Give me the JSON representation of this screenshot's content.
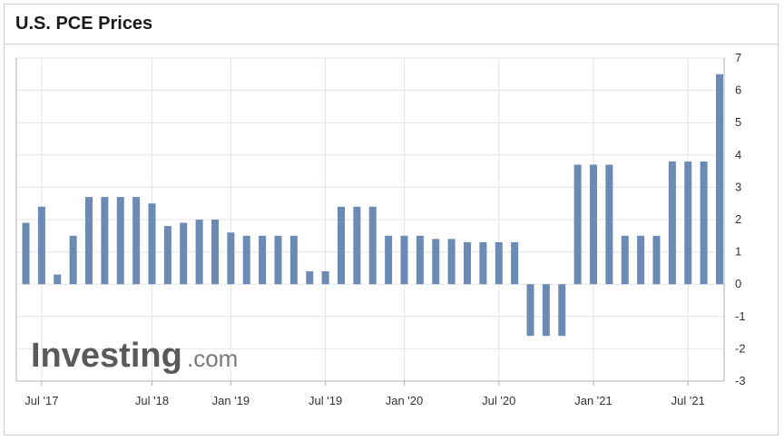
{
  "header": {
    "title": "U.S. PCE Prices"
  },
  "watermark": {
    "brand": "Investing",
    "suffix": ".com"
  },
  "colors": {
    "bar": "#6b8bb5",
    "grid": "#e6e6e6",
    "axis": "#b0b0b0",
    "text": "#333333"
  },
  "chart_data": {
    "type": "bar",
    "title": "U.S. PCE Prices",
    "ylim": [
      -3,
      7
    ],
    "y_ticks": [
      7,
      6,
      5,
      4,
      3,
      2,
      1,
      0,
      -1,
      -2,
      -3
    ],
    "x_tick_labels": [
      {
        "label": "Jul '17",
        "index": 1
      },
      {
        "label": "Jul '18",
        "index": 8
      },
      {
        "label": "Jan '19",
        "index": 13
      },
      {
        "label": "Jul '19",
        "index": 19
      },
      {
        "label": "Jan '20",
        "index": 24
      },
      {
        "label": "Jul '20",
        "index": 30
      },
      {
        "label": "Jan '21",
        "index": 36
      },
      {
        "label": "Jul '21",
        "index": 42
      }
    ],
    "values": [
      1.9,
      2.4,
      0.3,
      1.5,
      2.7,
      2.7,
      2.7,
      2.7,
      2.5,
      1.8,
      1.9,
      2.0,
      2.0,
      1.6,
      1.5,
      1.5,
      1.5,
      1.5,
      0.4,
      0.4,
      2.4,
      2.4,
      2.4,
      1.5,
      1.5,
      1.5,
      1.4,
      1.4,
      1.3,
      1.3,
      1.3,
      1.3,
      -1.6,
      -1.6,
      -1.6,
      3.7,
      3.7,
      3.7,
      1.5,
      1.5,
      1.5,
      3.8,
      3.8,
      3.8,
      6.5
    ],
    "grid": true,
    "legend": "none"
  }
}
